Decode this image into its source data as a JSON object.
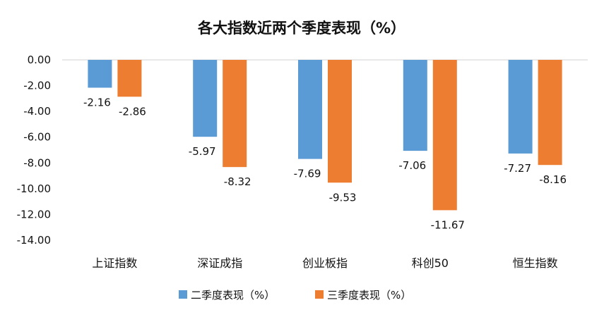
{
  "chart_data": {
    "type": "bar",
    "title": "各大指数近两个季度表现（%）",
    "categories": [
      "上证指数",
      "深证成指",
      "创业板指",
      "科创50",
      "恒生指数"
    ],
    "series": [
      {
        "name": "二季度表现（%）",
        "values": [
          -2.16,
          -5.97,
          -7.69,
          -7.06,
          -7.27
        ],
        "labels": [
          "-2.16",
          "-5.97",
          "-7.69",
          "-7.06",
          "-7.27"
        ],
        "color": "#5B9BD5"
      },
      {
        "name": "三季度表现（%）",
        "values": [
          -2.86,
          -8.32,
          -9.53,
          -11.67,
          -8.16
        ],
        "labels": [
          "-2.86",
          "-8.32",
          "-9.53",
          "-11.67",
          "-8.16"
        ],
        "color": "#ED7D31"
      }
    ],
    "ylim": [
      -14,
      0
    ],
    "yticks": [
      "0.00",
      "-2.00",
      "-4.00",
      "-6.00",
      "-8.00",
      "-10.00",
      "-12.00",
      "-14.00"
    ],
    "xlabel": "",
    "ylabel": "",
    "legend": "bottom",
    "grid": false
  }
}
